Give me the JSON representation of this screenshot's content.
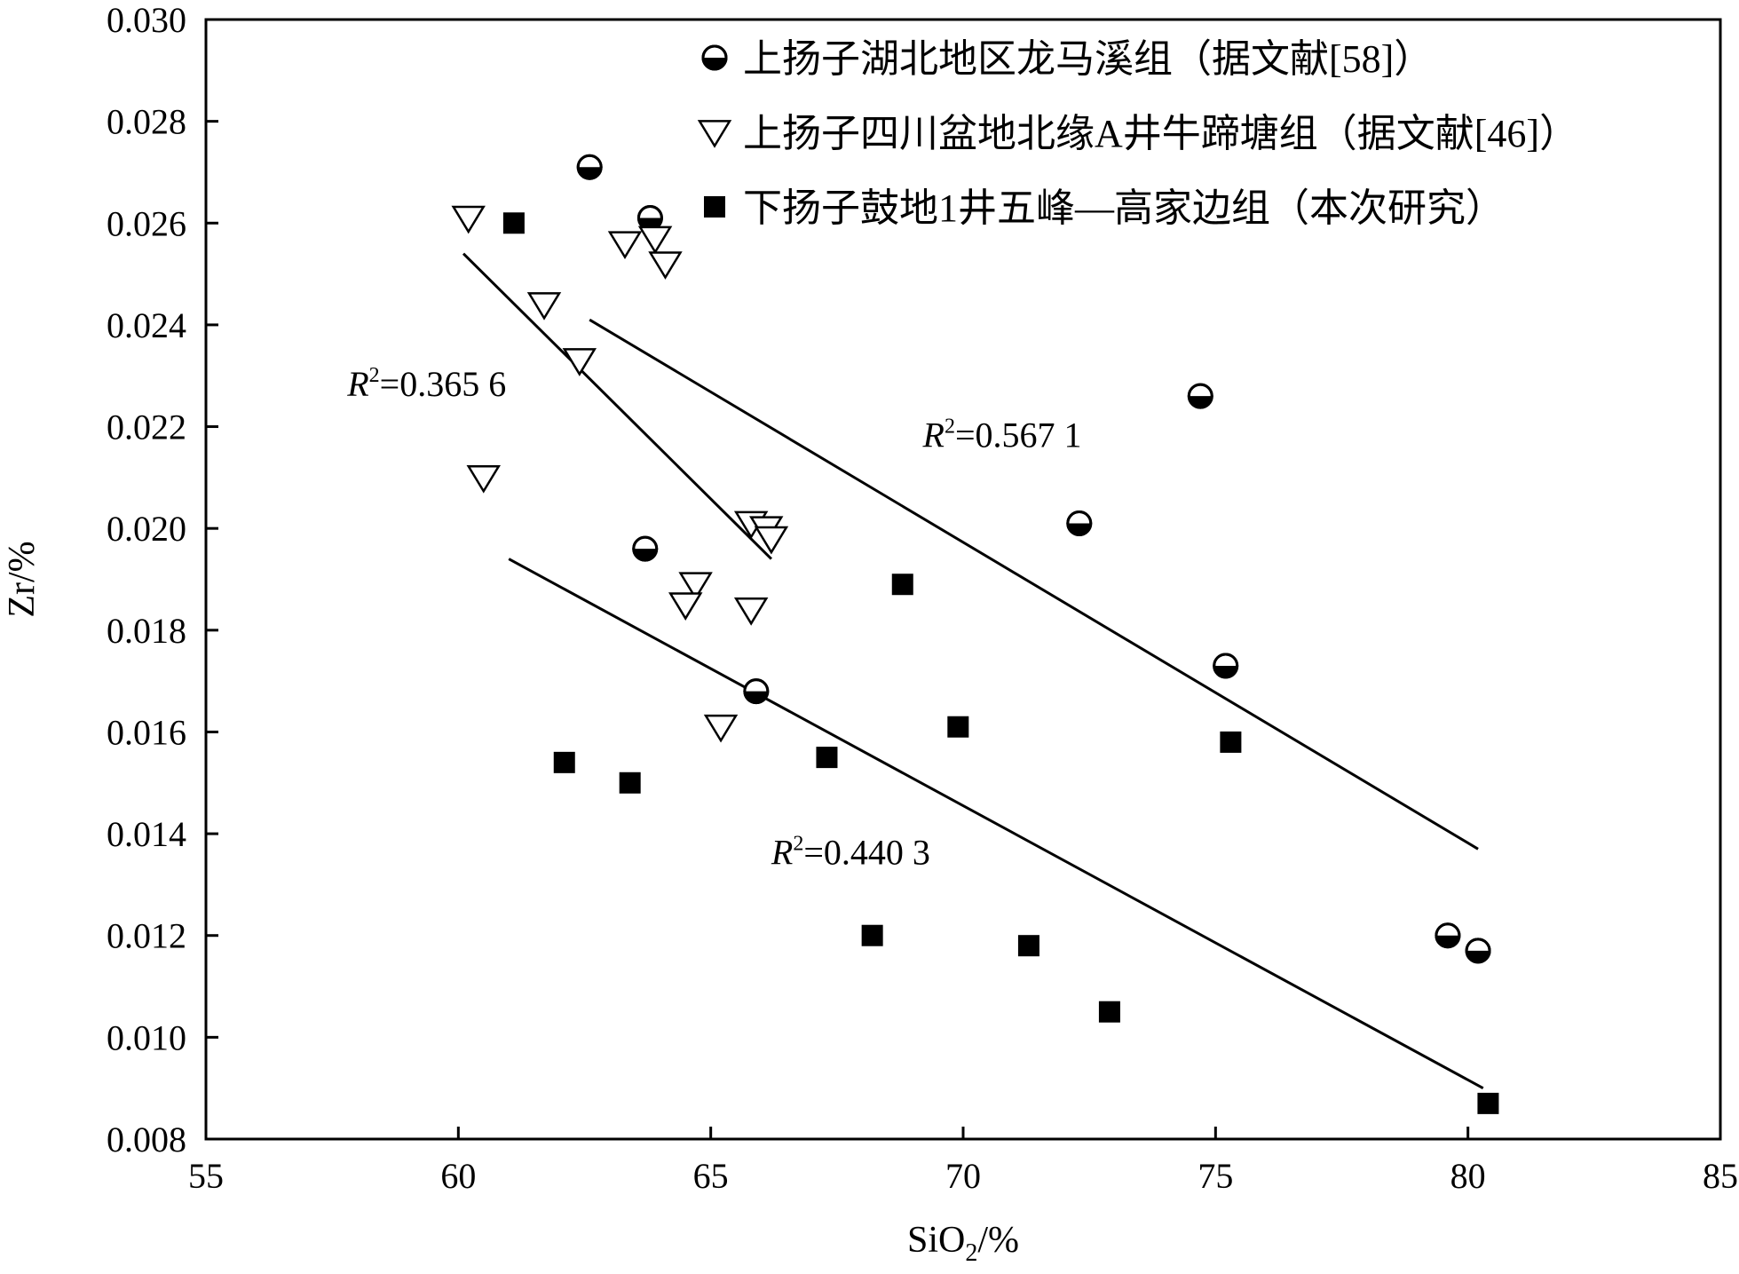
{
  "chart_data": {
    "type": "scatter",
    "title": "",
    "xlabel": "SiO₂/%",
    "ylabel": "Zr/%",
    "xlim": [
      55,
      85
    ],
    "ylim": [
      0.008,
      0.03
    ],
    "xticks": [
      "55",
      "60",
      "65",
      "70",
      "75",
      "80",
      "85"
    ],
    "yticks": [
      "0.008",
      "0.010",
      "0.012",
      "0.014",
      "0.016",
      "0.018",
      "0.020",
      "0.022",
      "0.024",
      "0.026",
      "0.028",
      "0.030"
    ],
    "grid": false,
    "legend_position": "top-right",
    "series": [
      {
        "name": "上扬子湖北地区龙马溪组（据文献[58]）",
        "marker": "half-filled-circle",
        "color": "#000000",
        "points": [
          [
            62.6,
            0.0271
          ],
          [
            63.8,
            0.0261
          ],
          [
            74.7,
            0.0226
          ],
          [
            72.3,
            0.0201
          ],
          [
            63.7,
            0.0196
          ],
          [
            75.2,
            0.0173
          ],
          [
            65.9,
            0.0168
          ],
          [
            79.6,
            0.012
          ],
          [
            80.2,
            0.0117
          ]
        ]
      },
      {
        "name": "上扬子四川盆地北缘A井牛蹄塘组（据文献[46]）",
        "marker": "open-triangle-down",
        "color": "#000000",
        "points": [
          [
            60.2,
            0.0261
          ],
          [
            63.3,
            0.0256
          ],
          [
            63.9,
            0.0257
          ],
          [
            64.1,
            0.0252
          ],
          [
            61.7,
            0.0244
          ],
          [
            62.4,
            0.0233
          ],
          [
            60.5,
            0.021
          ],
          [
            65.8,
            0.0201
          ],
          [
            66.1,
            0.02
          ],
          [
            66.2,
            0.0198
          ],
          [
            64.7,
            0.0189
          ],
          [
            64.5,
            0.0185
          ],
          [
            65.8,
            0.0184
          ],
          [
            65.2,
            0.0161
          ]
        ]
      },
      {
        "name": "下扬子鼓地1井五峰—高家边组（本次研究）",
        "marker": "filled-square",
        "color": "#000000",
        "points": [
          [
            61.1,
            0.026
          ],
          [
            68.8,
            0.0189
          ],
          [
            69.9,
            0.0161
          ],
          [
            75.3,
            0.0158
          ],
          [
            67.3,
            0.0155
          ],
          [
            62.1,
            0.0154
          ],
          [
            63.4,
            0.015
          ],
          [
            68.2,
            0.012
          ],
          [
            71.3,
            0.0118
          ],
          [
            72.9,
            0.0105
          ],
          [
            80.4,
            0.0087
          ]
        ]
      }
    ],
    "trendlines": [
      {
        "series_index": 1,
        "label": "R²=0.365 6",
        "from": [
          60.1,
          0.0254
        ],
        "to": [
          66.2,
          0.0194
        ],
        "label_pos": [
          57.8,
          0.0226
        ]
      },
      {
        "series_index": 0,
        "label": "R²=0.567 1",
        "from": [
          62.6,
          0.0241
        ],
        "to": [
          80.2,
          0.0137
        ],
        "label_pos": [
          69.2,
          0.0216
        ]
      },
      {
        "series_index": 2,
        "label": "R²=0.440 3",
        "from": [
          61.0,
          0.0194
        ],
        "to": [
          80.3,
          0.009
        ],
        "label_pos": [
          66.2,
          0.0134
        ]
      }
    ]
  }
}
